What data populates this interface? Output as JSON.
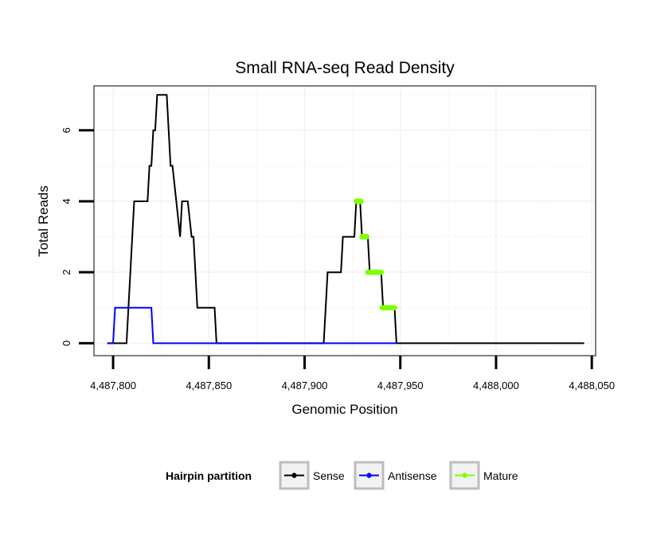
{
  "chart_data": {
    "type": "line",
    "title": "Small RNA-seq Read Density",
    "xlabel": "Genomic Position",
    "ylabel": "Total Reads",
    "xlim": [
      4487790,
      4488052
    ],
    "ylim": [
      -0.35,
      7.25
    ],
    "x_ticks": [
      4487800,
      4487850,
      4487900,
      4487950,
      4488000,
      4488050
    ],
    "x_tick_labels": [
      "4,487,800",
      "4,487,850",
      "4,487,900",
      "4,487,950",
      "4,488,000",
      "4,488,050"
    ],
    "y_ticks": [
      0,
      2,
      4,
      6
    ],
    "y_tick_labels": [
      "0",
      "2",
      "4",
      "6"
    ],
    "grid": true,
    "legend": {
      "title": "Hairpin partition",
      "position": "bottom",
      "entries": [
        "Sense",
        "Antisense",
        "Mature"
      ]
    },
    "series": [
      {
        "name": "Sense",
        "color": "#000000",
        "points": [
          [
            4487797,
            0
          ],
          [
            4487807,
            0
          ],
          [
            4487808,
            1
          ],
          [
            4487811,
            4
          ],
          [
            4487818,
            4
          ],
          [
            4487819,
            5
          ],
          [
            4487820,
            5
          ],
          [
            4487821,
            6
          ],
          [
            4487822,
            6
          ],
          [
            4487823,
            7
          ],
          [
            4487828,
            7
          ],
          [
            4487830,
            5
          ],
          [
            4487831,
            5
          ],
          [
            4487833,
            4
          ],
          [
            4487835,
            3
          ],
          [
            4487836,
            4
          ],
          [
            4487839,
            4
          ],
          [
            4487841,
            3
          ],
          [
            4487842,
            3
          ],
          [
            4487844,
            1
          ],
          [
            4487853,
            1
          ],
          [
            4487854,
            0
          ],
          [
            4487910,
            0
          ],
          [
            4487911,
            1
          ],
          [
            4487912,
            2
          ],
          [
            4487919,
            2
          ],
          [
            4487920,
            3
          ],
          [
            4487926,
            3
          ],
          [
            4487927,
            4
          ],
          [
            4487929,
            4
          ],
          [
            4487930,
            3
          ],
          [
            4487933,
            3
          ],
          [
            4487934,
            2
          ],
          [
            4487940,
            2
          ],
          [
            4487941,
            1
          ],
          [
            4487947,
            1
          ],
          [
            4487948,
            0
          ],
          [
            4488046,
            0
          ]
        ]
      },
      {
        "name": "Antisense",
        "color": "#0000ff",
        "points": [
          [
            4487797,
            0
          ],
          [
            4487800,
            0
          ],
          [
            4487801,
            1
          ],
          [
            4487820,
            1
          ],
          [
            4487821,
            0
          ],
          [
            4487948,
            0
          ]
        ]
      },
      {
        "name": "Mature",
        "color": "#7fff00",
        "marker_points": [
          [
            4487927.0,
            4
          ],
          [
            4487927.5,
            4
          ],
          [
            4487928.0,
            4
          ],
          [
            4487928.5,
            4
          ],
          [
            4487929.0,
            4
          ],
          [
            4487929.5,
            4
          ],
          [
            4487930.0,
            3
          ],
          [
            4487930.5,
            3
          ],
          [
            4487931.0,
            3
          ],
          [
            4487931.5,
            3
          ],
          [
            4487932.0,
            3
          ],
          [
            4487932.5,
            3
          ],
          [
            4487933.0,
            2
          ],
          [
            4487934.0,
            2
          ],
          [
            4487935.0,
            2
          ],
          [
            4487936.0,
            2
          ],
          [
            4487937.0,
            2
          ],
          [
            4487938.0,
            2
          ],
          [
            4487939.0,
            2
          ],
          [
            4487940.0,
            2
          ],
          [
            4487940.5,
            1
          ],
          [
            4487941.5,
            1
          ],
          [
            4487942.5,
            1
          ],
          [
            4487943.5,
            1
          ],
          [
            4487944.5,
            1
          ],
          [
            4487945.5,
            1
          ],
          [
            4487946.5,
            1
          ],
          [
            4487947.0,
            1
          ]
        ]
      }
    ]
  }
}
